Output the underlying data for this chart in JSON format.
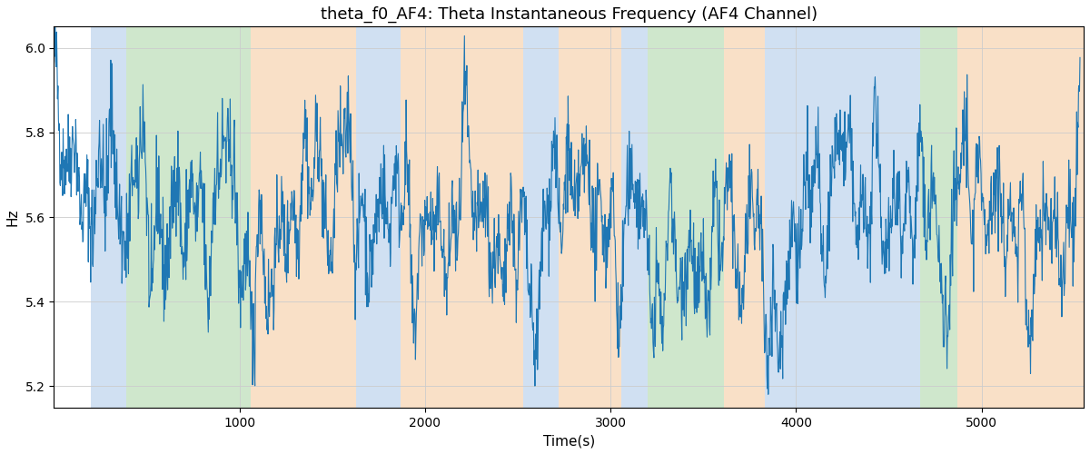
{
  "title": "theta_f0_AF4: Theta Instantaneous Frequency (AF4 Channel)",
  "xlabel": "Time(s)",
  "ylabel": "Hz",
  "ylim": [
    5.15,
    6.05
  ],
  "xlim": [
    0,
    5550
  ],
  "yticks": [
    5.2,
    5.4,
    5.6,
    5.8,
    6.0
  ],
  "xticks": [
    1000,
    2000,
    3000,
    4000,
    5000
  ],
  "line_color": "#1f77b4",
  "line_width": 0.8,
  "bg_color": "#ffffff",
  "fig_bg": "#ffffff",
  "title_fontsize": 13,
  "label_fontsize": 11,
  "seed": 42,
  "n_points": 2200,
  "x_start": 0,
  "x_end": 5530,
  "mean_freq": 5.585,
  "background_bands": [
    {
      "xmin": 200,
      "xmax": 390,
      "color": "#aac8e8",
      "alpha": 0.55
    },
    {
      "xmin": 390,
      "xmax": 1060,
      "color": "#a8d5a2",
      "alpha": 0.55
    },
    {
      "xmin": 1060,
      "xmax": 1630,
      "color": "#f5c89a",
      "alpha": 0.55
    },
    {
      "xmin": 1630,
      "xmax": 1870,
      "color": "#aac8e8",
      "alpha": 0.55
    },
    {
      "xmin": 1870,
      "xmax": 2530,
      "color": "#f5c89a",
      "alpha": 0.55
    },
    {
      "xmin": 2530,
      "xmax": 2720,
      "color": "#aac8e8",
      "alpha": 0.55
    },
    {
      "xmin": 2720,
      "xmax": 3060,
      "color": "#f5c89a",
      "alpha": 0.55
    },
    {
      "xmin": 3060,
      "xmax": 3200,
      "color": "#aac8e8",
      "alpha": 0.55
    },
    {
      "xmin": 3200,
      "xmax": 3610,
      "color": "#a8d5a2",
      "alpha": 0.55
    },
    {
      "xmin": 3610,
      "xmax": 3830,
      "color": "#f5c89a",
      "alpha": 0.55
    },
    {
      "xmin": 3830,
      "xmax": 4670,
      "color": "#aac8e8",
      "alpha": 0.55
    },
    {
      "xmin": 4670,
      "xmax": 4870,
      "color": "#a8d5a2",
      "alpha": 0.55
    },
    {
      "xmin": 4870,
      "xmax": 5550,
      "color": "#f5c89a",
      "alpha": 0.55
    }
  ]
}
